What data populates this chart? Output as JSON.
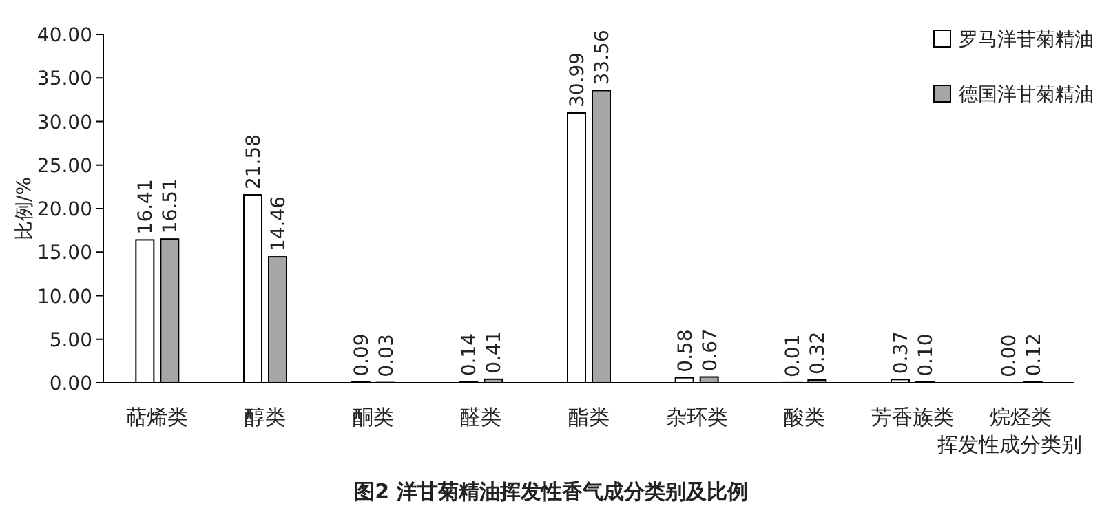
{
  "chart_data": {
    "type": "bar",
    "title": "图2 洋甘菊精油挥发性香气成分类别及比例",
    "xlabel": "挥发性成分类别",
    "ylabel": "比例/%",
    "categories": [
      "萜烯类",
      "醇类",
      "酮类",
      "醛类",
      "酯类",
      "杂环类",
      "酸类",
      "芳香族类",
      "烷烃类"
    ],
    "series": [
      {
        "name": "罗马洋苷菊精油",
        "color": "#ffffff",
        "values": [
          16.41,
          21.58,
          0.09,
          0.14,
          30.99,
          0.58,
          0.01,
          0.37,
          0.0
        ],
        "value_labels": [
          "16.41",
          "21.58",
          "0.09",
          "0.14",
          "30.99",
          "0.58",
          "0.01",
          "0.37",
          "0.00"
        ]
      },
      {
        "name": "德国洋甘菊精油",
        "color": "#a6a6a6",
        "values": [
          16.51,
          14.46,
          0.03,
          0.41,
          33.56,
          0.67,
          0.32,
          0.1,
          0.12
        ],
        "value_labels": [
          "16.51",
          "14.46",
          "0.03",
          "0.41",
          "33.56",
          "0.67",
          "0.32",
          "0.10",
          "0.12"
        ]
      }
    ],
    "ylim": [
      0,
      40
    ],
    "yticks": [
      {
        "value": 0,
        "label": "0.00"
      },
      {
        "value": 5,
        "label": "5.00"
      },
      {
        "value": 10,
        "label": "10.00"
      },
      {
        "value": 15,
        "label": "15.00"
      },
      {
        "value": 20,
        "label": "20.00"
      },
      {
        "value": 25,
        "label": "25.00"
      },
      {
        "value": 30,
        "label": "30.00"
      },
      {
        "value": 35,
        "label": "35.00"
      },
      {
        "value": 40,
        "label": "40.00"
      }
    ],
    "legend": "top right",
    "grid": false
  }
}
